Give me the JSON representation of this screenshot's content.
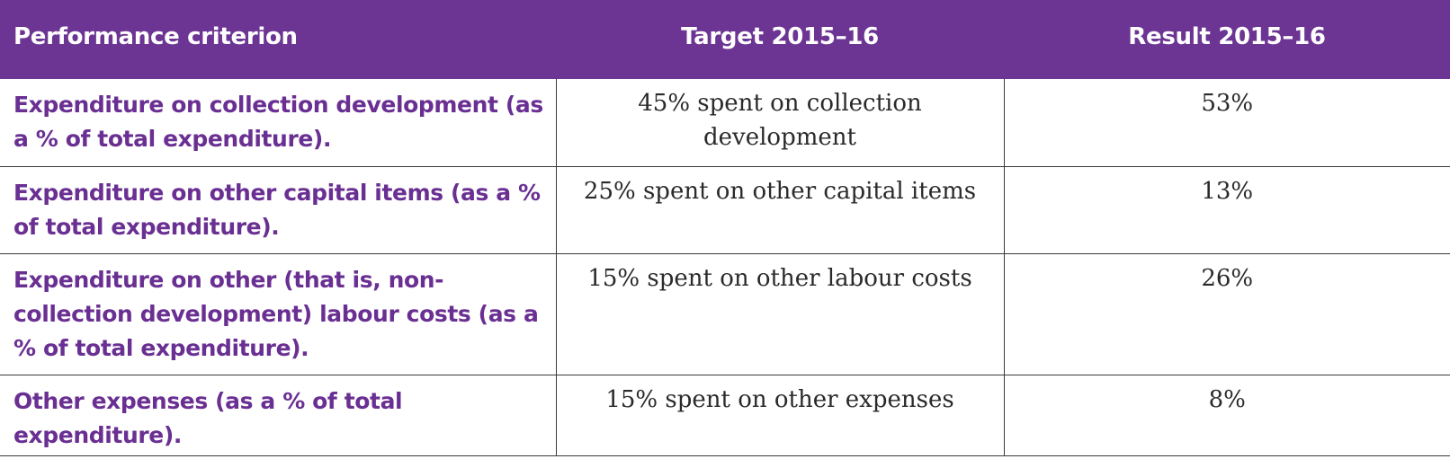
{
  "table": {
    "headers": {
      "criterion": "Performance criterion",
      "target": "Target 2015–16",
      "result": "Result 2015–16"
    },
    "rows": [
      {
        "criterion": "Expenditure on collection development (as a % of total expenditure).",
        "target": "45% spent on collection development",
        "result": "53%"
      },
      {
        "criterion": "Expenditure on other capital items (as a % of total expenditure).",
        "target": "25% spent on other capital items",
        "result": "13%"
      },
      {
        "criterion": "Expenditure on other (that is, non-collection development) labour costs (as a % of total expenditure).",
        "target": "15% spent on other labour costs",
        "result": "26%"
      },
      {
        "criterion": "Other expenses (as a % of total expenditure).",
        "target": "15% spent on other expenses",
        "result": "8%"
      }
    ],
    "colors": {
      "header_background": "#6d3593",
      "header_text": "#ffffff",
      "criterion_text": "#6a2f92",
      "body_text": "#2a2a2a"
    }
  }
}
